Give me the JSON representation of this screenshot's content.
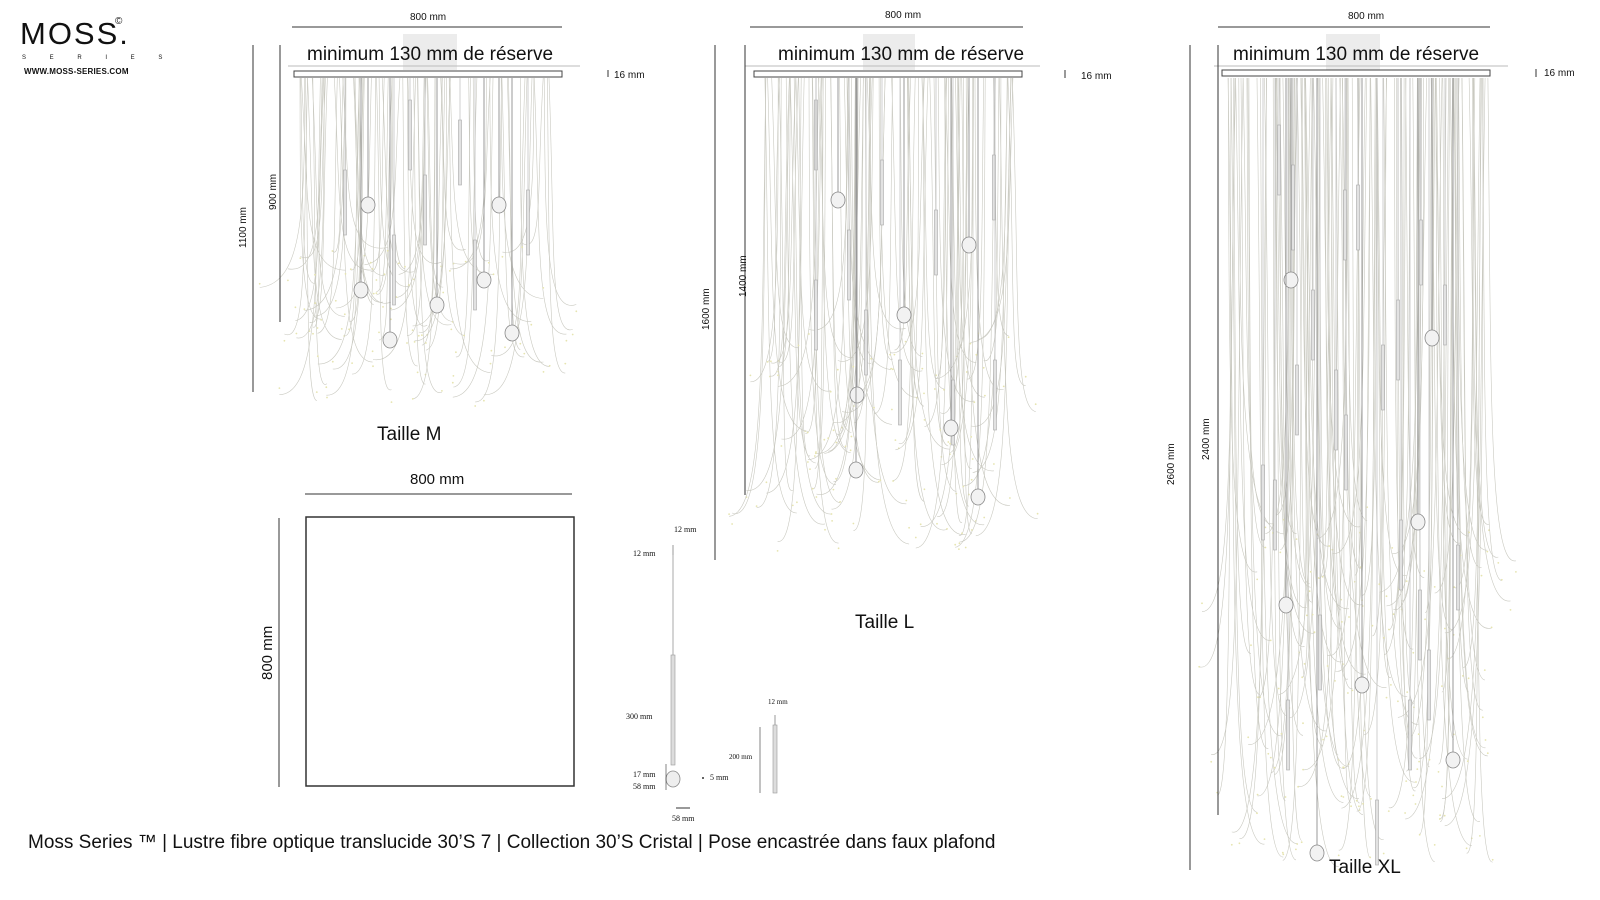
{
  "brand": {
    "name": "MOSS.",
    "copyright": "©",
    "tagline": "S E R I E S",
    "url": "WWW.MOSS-SERIES.COM"
  },
  "reserve_note": "minimum 130 mm de réserve",
  "sizes": {
    "m": {
      "label": "Taille M",
      "width": "800 mm",
      "thickness": "16 mm",
      "total_height": "1100 mm",
      "fiber_height": "900 mm"
    },
    "l": {
      "label": "Taille L",
      "width": "800 mm",
      "thickness": "16 mm",
      "total_height": "1600 mm",
      "fiber_height": "1400 mm"
    },
    "xl": {
      "label": "Taille XL",
      "width": "800 mm",
      "thickness": "16 mm",
      "total_height": "2600 mm",
      "fiber_height": "2400 mm"
    }
  },
  "plan": {
    "width": "800 mm",
    "depth": "800 mm"
  },
  "pendant": {
    "top_width": "12 mm",
    "top_cap": "12 mm",
    "rod_length": "300 mm",
    "neck": "17 mm",
    "globe_height": "58 mm",
    "globe_width": "58 mm",
    "offset": "5 mm"
  },
  "tube": {
    "top": "12 mm",
    "length": "200 mm"
  },
  "footer": "Moss Series ™  | Lustre fibre optique translucide 30’S 7 | Collection 30’S Cristal | Pose encastrée dans faux plafond",
  "colors": {
    "line": "#333333",
    "fiber": "#c9c9c0",
    "fiber_tip": "#e6e4b0",
    "rod": "#a8a8a8"
  }
}
